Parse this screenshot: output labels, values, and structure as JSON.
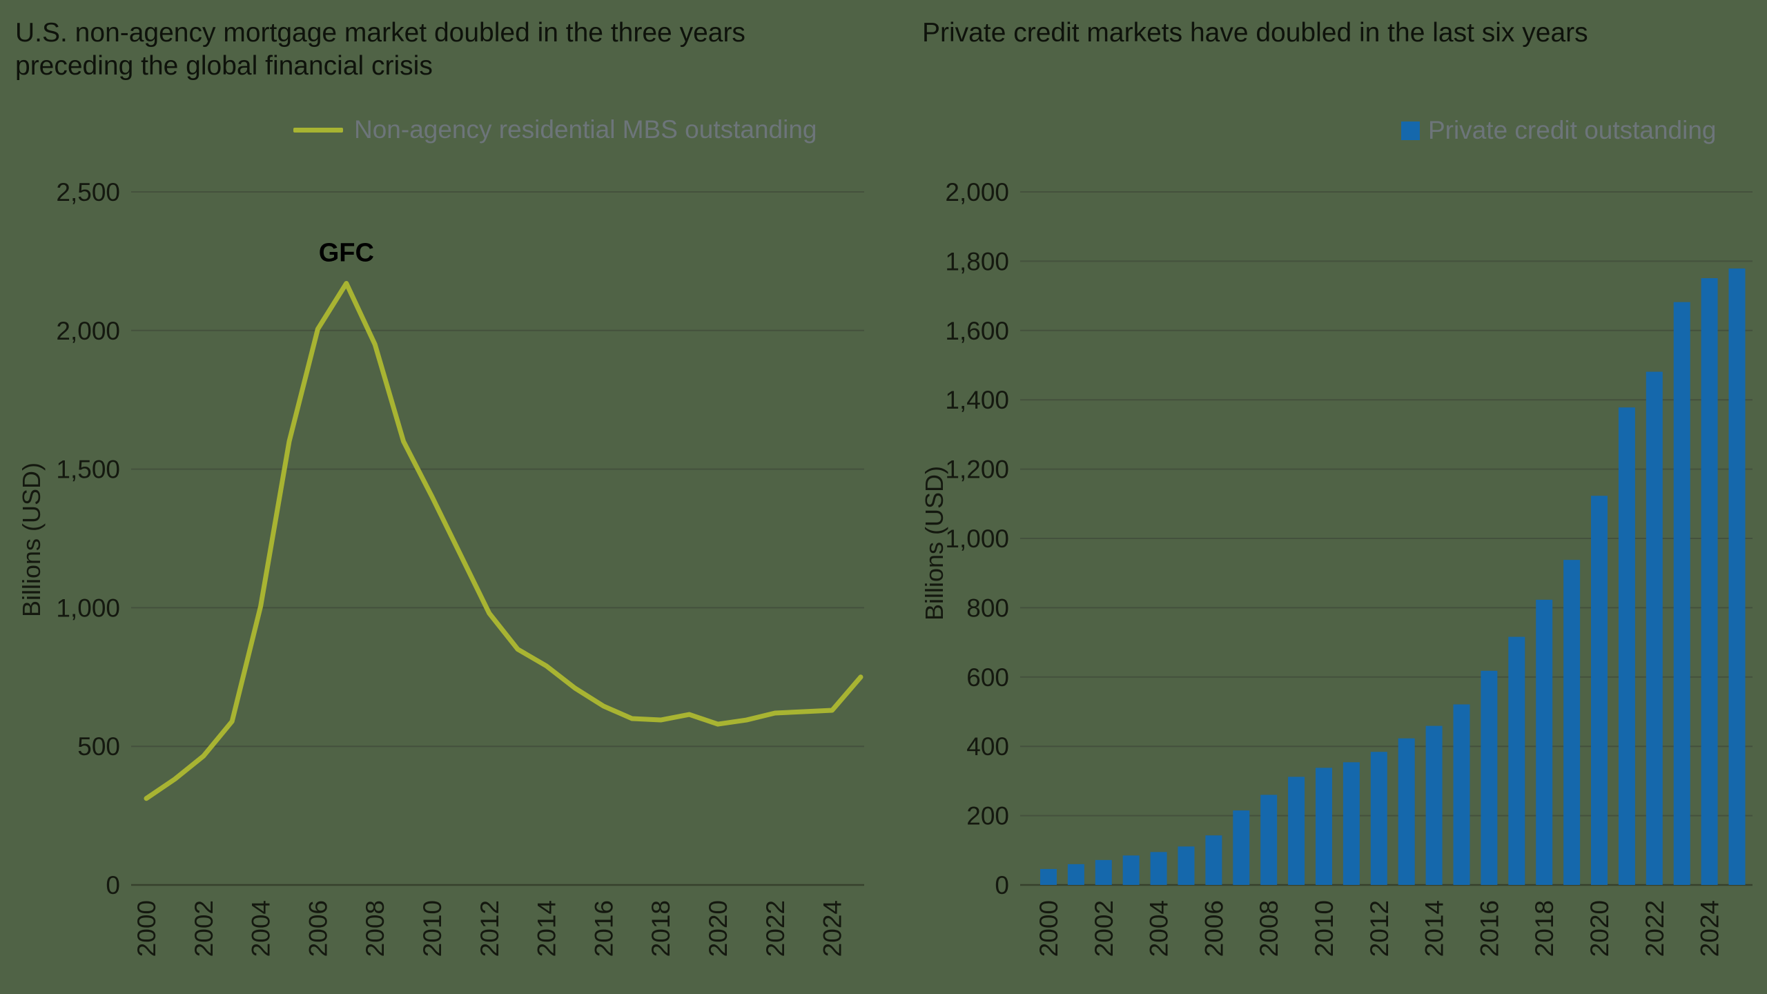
{
  "page": {
    "background_color": "#506346"
  },
  "chart_data": [
    {
      "type": "line",
      "title": "U.S. non-agency mortgage market doubled in the three years preceding the global financial crisis",
      "ylabel": "Billions (USD)",
      "legend": "Non-agency residential MBS outstanding",
      "legend_position": "top-right",
      "color": "#a8b432",
      "grid": true,
      "ylim": [
        0,
        2500
      ],
      "ytick_step": 500,
      "xtick_step": 2,
      "x": [
        2000,
        2001,
        2002,
        2003,
        2004,
        2005,
        2006,
        2007,
        2008,
        2009,
        2010,
        2011,
        2012,
        2013,
        2014,
        2015,
        2016,
        2017,
        2018,
        2019,
        2020,
        2021,
        2022,
        2023,
        2024,
        2025
      ],
      "values": [
        312,
        382,
        465,
        590,
        1005,
        1600,
        2005,
        2170,
        1950,
        1600,
        1400,
        1190,
        980,
        850,
        790,
        710,
        645,
        600,
        595,
        615,
        580,
        595,
        620,
        625,
        630,
        750
      ],
      "annotations": [
        {
          "text": "GFC",
          "x": 2007,
          "y": 2170
        }
      ]
    },
    {
      "type": "bar",
      "title": "Private credit markets have doubled in the last six years",
      "ylabel": "Billions (USD)",
      "legend": "Private credit outstanding",
      "legend_position": "top-right",
      "color": "#1568ac",
      "grid": true,
      "ylim": [
        0,
        2000
      ],
      "ytick_step": 200,
      "xtick_step": 2,
      "x": [
        2000,
        2001,
        2002,
        2003,
        2004,
        2005,
        2006,
        2007,
        2008,
        2009,
        2010,
        2011,
        2012,
        2013,
        2014,
        2015,
        2016,
        2017,
        2018,
        2019,
        2020,
        2021,
        2022,
        2023,
        2024,
        2025
      ],
      "values": [
        46,
        60,
        72,
        85,
        95,
        111,
        143,
        215,
        260,
        312,
        338,
        354,
        384,
        423,
        459,
        521,
        618,
        716,
        823,
        938,
        1123,
        1378,
        1481,
        1682,
        1751,
        1779
      ],
      "annotations": []
    }
  ],
  "text_colors": {
    "title": "#0e120b",
    "tick_label": "#14180f",
    "legend_label": "#6d757a",
    "annotation": "#000000",
    "gridline": "#44513d"
  }
}
